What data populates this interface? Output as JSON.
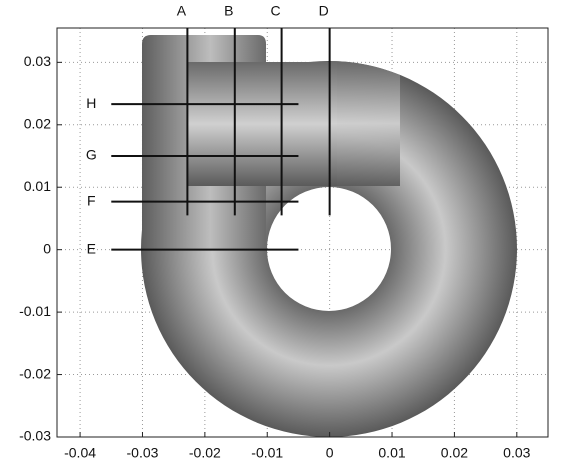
{
  "chart_data": {
    "type": "annotated-plot",
    "xlim": [
      -0.0437,
      0.035
    ],
    "ylim": [
      -0.03,
      0.0355
    ],
    "xticks": [
      -0.04,
      -0.03,
      -0.02,
      -0.01,
      0,
      0.01,
      0.02,
      0.03
    ],
    "yticks": [
      -0.03,
      -0.02,
      -0.01,
      0,
      0.01,
      0.02,
      0.03
    ],
    "grid": true,
    "vertical_lines": [
      {
        "label": "A",
        "x": -0.0228,
        "y": [
          0.0055,
          0.0355
        ]
      },
      {
        "label": "B",
        "x": -0.0152,
        "y": [
          0.0055,
          0.0355
        ]
      },
      {
        "label": "C",
        "x": -0.0077,
        "y": [
          0.0055,
          0.0355
        ]
      },
      {
        "label": "D",
        "x": 0,
        "y": [
          0.0055,
          0.0355
        ]
      }
    ],
    "horizontal_lines": [
      {
        "label": "H",
        "y": 0.0233,
        "x": [
          -0.035,
          -0.005
        ]
      },
      {
        "label": "G",
        "y": 0.015,
        "x": [
          -0.035,
          -0.005
        ]
      },
      {
        "label": "F",
        "y": 0.0077,
        "x": [
          -0.035,
          -0.005
        ]
      },
      {
        "label": "E",
        "y": 0,
        "x": [
          -0.035,
          -0.005
        ]
      }
    ]
  }
}
